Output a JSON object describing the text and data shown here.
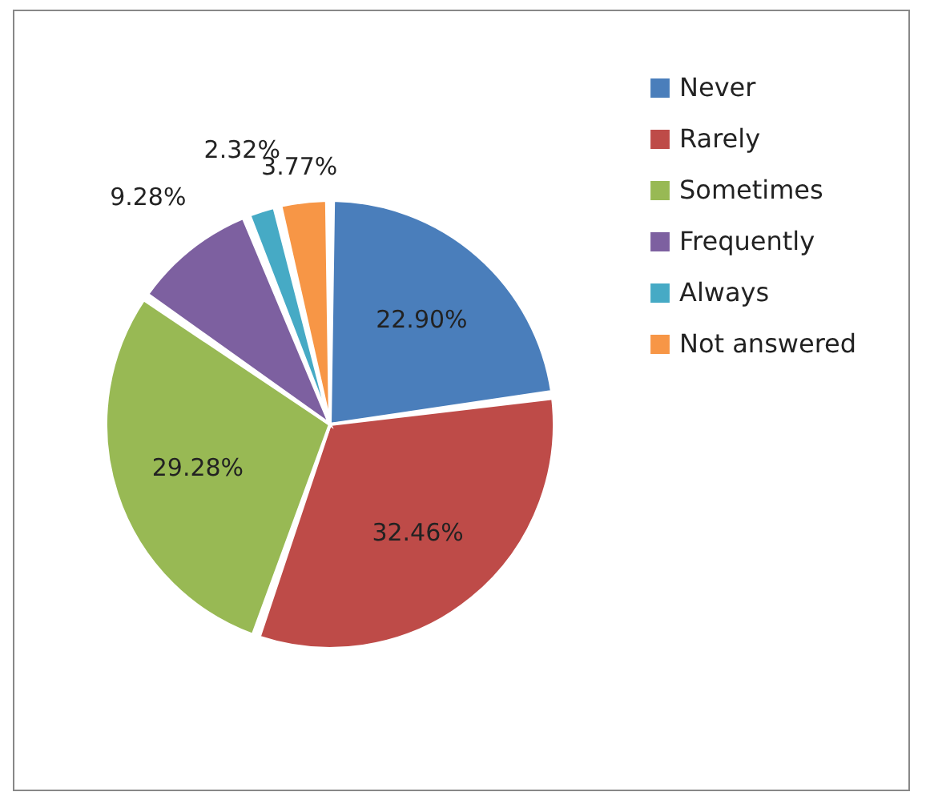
{
  "chart_data": {
    "type": "pie",
    "categories": [
      "Never",
      "Rarely",
      "Sometimes",
      "Frequently",
      "Always",
      "Not answered"
    ],
    "values": [
      22.9,
      32.46,
      29.28,
      9.28,
      2.32,
      3.77
    ],
    "colors": [
      "#4a7ebb",
      "#be4b48",
      "#98b954",
      "#7d60a0",
      "#46aac5",
      "#f79646"
    ],
    "value_labels": [
      "22.90%",
      "32.46%",
      "29.28%",
      "9.28%",
      "2.32%",
      "3.77%"
    ],
    "legend": "right"
  }
}
